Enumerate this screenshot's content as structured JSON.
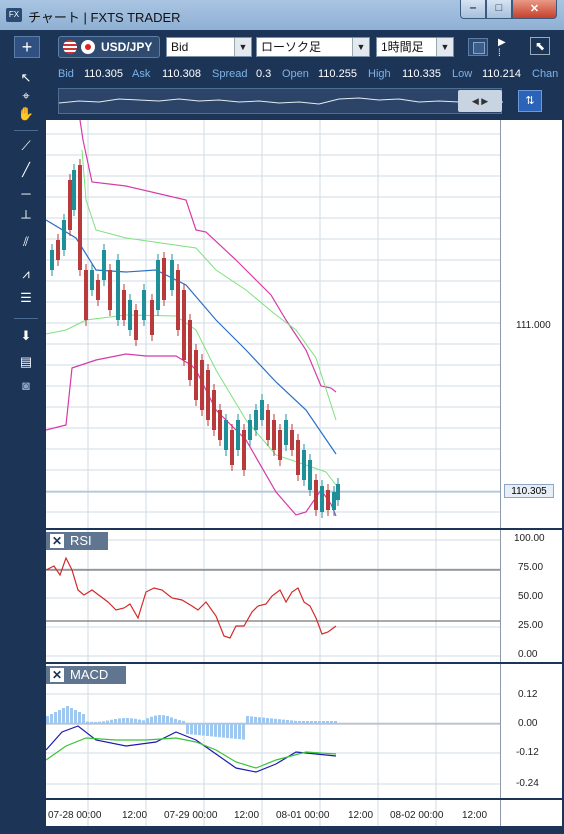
{
  "window": {
    "title": "チャート | FXTS TRADER",
    "icon": "app-icon"
  },
  "toolbar": {
    "add_label": "+",
    "pair": "USD/JPY",
    "price_type": "Bid",
    "chart_type": "ローソク足",
    "timeframe": "1時間足"
  },
  "quotes": [
    {
      "label": "Bid",
      "value": "110.305"
    },
    {
      "label": "Ask",
      "value": "110.308"
    },
    {
      "label": "Spread",
      "value": "0.3"
    },
    {
      "label": "Open",
      "value": "110.255"
    },
    {
      "label": "High",
      "value": "110.335"
    },
    {
      "label": "Low",
      "value": "110.214"
    },
    {
      "label": "Chan",
      "value": ""
    }
  ],
  "left_tools": [
    "cursor-icon",
    "crosshair-icon",
    "hand-icon",
    "ruler-icon",
    "trendline-icon",
    "hline-icon",
    "vline-icon",
    "channel-icon",
    "fan-icon",
    "fib-icon",
    "download-icon",
    "list-icon",
    "camera-icon"
  ],
  "price_axis": {
    "ticks": [
      "111.000"
    ],
    "current": "110.305"
  },
  "rsi": {
    "title": "RSI",
    "ticks": [
      "100.00",
      "75.00",
      "50.00",
      "25.00",
      "0.00"
    ]
  },
  "macd": {
    "title": "MACD",
    "ticks": [
      "0.12",
      "0.00",
      "-0.12",
      "-0.24"
    ]
  },
  "time_axis": [
    "07-28 00:00",
    "12:00",
    "07-29 00:00",
    "12:00",
    "08-01 00:00",
    "12:00",
    "08-02 00:00",
    "12:00"
  ],
  "colors": {
    "up": "#1f8f9a",
    "down": "#b83a3a",
    "bb_outer": "#d63aa8",
    "bb_inner": "#7ee07e",
    "ma": "#2a6fc9",
    "rsi": "#d12a2a",
    "macd": "#1a1ab0",
    "signal": "#3ac23a",
    "hist": "#9ec8f0"
  }
}
